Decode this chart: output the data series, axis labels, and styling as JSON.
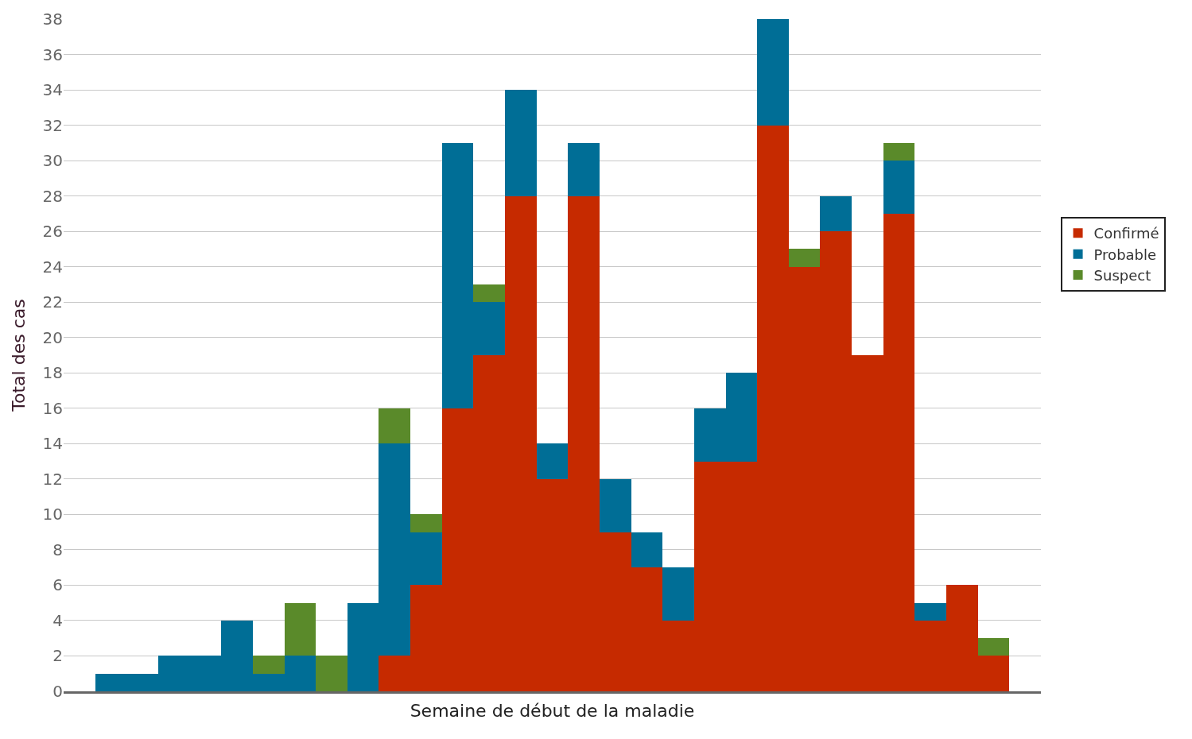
{
  "chart_data": {
    "type": "bar",
    "stacked": true,
    "xlabel": "Semaine de début de la maladie",
    "ylabel": "Total des cas",
    "categories": [
      null,
      null,
      null,
      null,
      null,
      null,
      null,
      null,
      null,
      null,
      null,
      null,
      null,
      null,
      null,
      null,
      null,
      null,
      null,
      null,
      null,
      null,
      null,
      null,
      null,
      null,
      null,
      null,
      null,
      null,
      null
    ],
    "series": [
      {
        "name": "Confirmé",
        "color": "#c62a00",
        "values": [
          0,
          0,
          0,
          0,
          0,
          0,
          0,
          0,
          0,
          0,
          2,
          6,
          16,
          19,
          28,
          12,
          28,
          9,
          7,
          4,
          13,
          13,
          32,
          24,
          26,
          19,
          27,
          4,
          6,
          2,
          0
        ]
      },
      {
        "name": "Probable",
        "color": "#006e96",
        "values": [
          0,
          1,
          1,
          2,
          2,
          4,
          1,
          2,
          0,
          5,
          12,
          3,
          15,
          3,
          6,
          2,
          3,
          3,
          2,
          3,
          3,
          5,
          6,
          0,
          2,
          0,
          3,
          1,
          0,
          0,
          0
        ]
      },
      {
        "name": "Suspect",
        "color": "#5a8a2a",
        "values": [
          0,
          0,
          0,
          0,
          0,
          0,
          1,
          3,
          2,
          0,
          2,
          1,
          0,
          1,
          0,
          0,
          0,
          0,
          0,
          0,
          0,
          0,
          0,
          1,
          0,
          0,
          1,
          0,
          0,
          1,
          0
        ]
      }
    ],
    "ylim": [
      0,
      38
    ],
    "yticks": [
      0,
      2,
      4,
      6,
      8,
      10,
      12,
      14,
      16,
      18,
      20,
      22,
      24,
      26,
      28,
      30,
      32,
      34,
      36,
      38
    ],
    "grid": "y",
    "legend": "right",
    "tick_labels": "y"
  }
}
